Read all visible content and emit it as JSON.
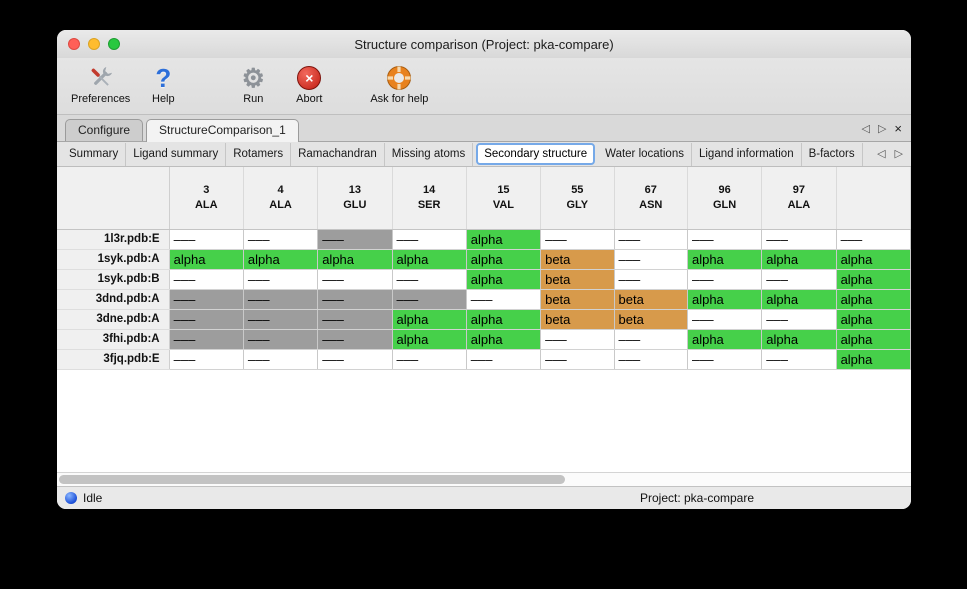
{
  "window": {
    "title": "Structure comparison (Project: pka-compare)"
  },
  "toolbar": {
    "items": [
      {
        "label": "Preferences",
        "icon": "preferences-tools-icon"
      },
      {
        "label": "Help",
        "icon": "help-question-icon"
      },
      {
        "label": "Run",
        "icon": "run-gear-icon"
      },
      {
        "label": "Abort",
        "icon": "abort-icon"
      },
      {
        "label": "Ask for help",
        "icon": "lifebuoy-icon"
      }
    ],
    "gear_glyph": "⚙",
    "abort_glyph": "×",
    "help_glyph": "?"
  },
  "tabs_primary": {
    "items": [
      {
        "label": "Configure",
        "active": false
      },
      {
        "label": "StructureComparison_1",
        "active": true
      }
    ],
    "controls": {
      "prev": "◁",
      "next": "▷",
      "close": "×"
    }
  },
  "tabs_secondary": {
    "items": [
      "Summary",
      "Ligand summary",
      "Rotamers",
      "Ramachandran",
      "Missing atoms",
      "Secondary structure",
      "Water locations",
      "Ligand information",
      "B-factors"
    ],
    "selected": "Secondary structure",
    "selected_index": 5,
    "controls": {
      "prev": "◁",
      "next": "▷"
    }
  },
  "table": {
    "columns": [
      {
        "num": "3",
        "res": "ALA"
      },
      {
        "num": "4",
        "res": "ALA"
      },
      {
        "num": "13",
        "res": "GLU"
      },
      {
        "num": "14",
        "res": "SER"
      },
      {
        "num": "15",
        "res": "VAL"
      },
      {
        "num": "55",
        "res": "GLY"
      },
      {
        "num": "67",
        "res": "ASN"
      },
      {
        "num": "96",
        "res": "GLN"
      },
      {
        "num": "97",
        "res": "ALA"
      },
      {
        "num": "",
        "res": ""
      }
    ],
    "cell_defs": {
      "w": {
        "text": "–––",
        "bg": "#ffffff"
      },
      "g": {
        "text": "–––",
        "bg": "#9d9d9d"
      },
      "a": {
        "text": "alpha",
        "bg": "#46d04a"
      },
      "b": {
        "text": "beta",
        "bg": "#d79a4b"
      }
    },
    "rows": [
      {
        "name": "1l3r.pdb:E",
        "cells": [
          "w",
          "w",
          "g",
          "w",
          "a",
          "w",
          "w",
          "w",
          "w",
          "w"
        ]
      },
      {
        "name": "1syk.pdb:A",
        "cells": [
          "a",
          "a",
          "a",
          "a",
          "a",
          "b",
          "w",
          "a",
          "a",
          "a"
        ]
      },
      {
        "name": "1syk.pdb:B",
        "cells": [
          "w",
          "w",
          "w",
          "w",
          "a",
          "b",
          "w",
          "w",
          "w",
          "a"
        ]
      },
      {
        "name": "3dnd.pdb:A",
        "cells": [
          "g",
          "g",
          "g",
          "g",
          "w",
          "b",
          "b",
          "a",
          "a",
          "a"
        ]
      },
      {
        "name": "3dne.pdb:A",
        "cells": [
          "g",
          "g",
          "g",
          "a",
          "a",
          "b",
          "b",
          "w",
          "w",
          "a"
        ]
      },
      {
        "name": "3fhi.pdb:A",
        "cells": [
          "g",
          "g",
          "g",
          "a",
          "a",
          "w",
          "w",
          "a",
          "a",
          "a"
        ]
      },
      {
        "name": "3fjq.pdb:E",
        "cells": [
          "w",
          "w",
          "w",
          "w",
          "w",
          "w",
          "w",
          "w",
          "w",
          "a"
        ]
      }
    ]
  },
  "statusbar": {
    "status_label": "Idle",
    "project_label": "Project: pka-compare"
  },
  "colors": {
    "alpha_green": "#46d04a",
    "beta_orange": "#d79a4b",
    "empty_gray": "#9d9d9d",
    "tab_focus_blue": "#76a9e8"
  }
}
